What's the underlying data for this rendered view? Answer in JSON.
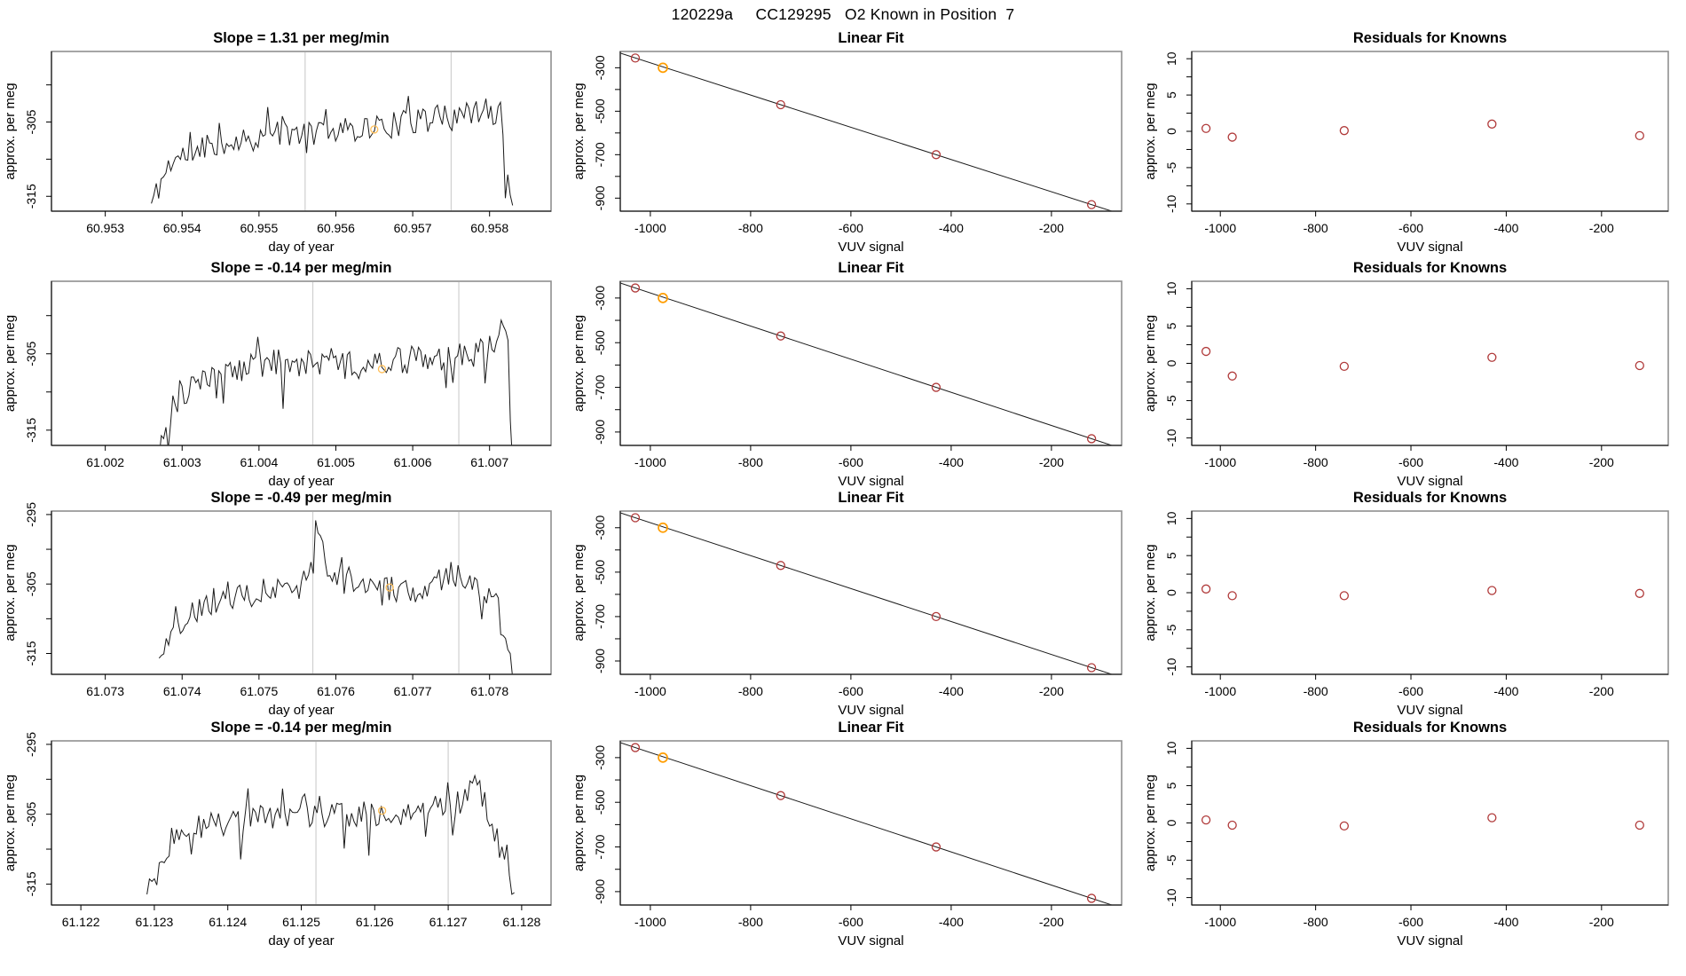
{
  "title": "120229a     CC129295   O2 Known in Position  7",
  "colors": {
    "point": "#b03a3a",
    "orange": "#ff9d00",
    "orange_light": "#ffbe57",
    "vline": "#cfcfcf",
    "box": "#8f8f8f",
    "axis": "#000000",
    "series": "#1a1a1a",
    "fit_line": "#1a1a1a"
  },
  "chart_data": {
    "type": "line",
    "grid": "4 rows x 3 columns",
    "labels": {
      "ts_xlabel": "day of year",
      "vuv_xlabel": "VUV signal",
      "ylabel": "approx. per meg",
      "linear_fit_title": "Linear Fit",
      "residuals_title": "Residuals for Knowns"
    },
    "knowns": {
      "vuv_x": [
        -1030,
        -975,
        -740,
        -430,
        -120
      ],
      "fit_y": [
        -255,
        -300,
        -470,
        -700,
        -930
      ],
      "orange_index": 1,
      "fit_axes": {
        "xlim": [
          -1060,
          -60
        ],
        "ylim": [
          -960,
          -225
        ],
        "xticks": [
          "-1000",
          "-800",
          "-600",
          "-400",
          "-200"
        ],
        "yticks_major": [
          -300,
          -500,
          -700,
          -900
        ],
        "yticks_minor": [
          -400,
          -600,
          -800
        ]
      },
      "resid_axes": {
        "xlim": [
          -1060,
          -60
        ],
        "ylim": [
          -11,
          11
        ],
        "xticks": [
          "-1000",
          "-800",
          "-600",
          "-400",
          "-200"
        ],
        "yticks_major": [
          10,
          5,
          0,
          -5,
          -10
        ],
        "yticks_minor": [
          7.5,
          2.5,
          -2.5,
          -7.5
        ]
      }
    },
    "rows": [
      {
        "slope_title": "Slope =  1.31  per meg/min",
        "timeseries": {
          "xlim": [
            60.9523,
            60.9588
          ],
          "ylim": [
            -317,
            -295.5
          ],
          "xticks": [
            "60.953",
            "60.954",
            "60.955",
            "60.956",
            "60.957",
            "60.958"
          ],
          "yticks": [
            -315,
            -310,
            -305,
            -300,
            -295
          ],
          "yticks_labeled": [
            -315,
            -305
          ],
          "data_x": [
            60.9536,
            60.9583
          ],
          "envelope": [
            [
              0,
              -316
            ],
            [
              0.05,
              -310.5
            ],
            [
              0.15,
              -308
            ],
            [
              0.3,
              -307
            ],
            [
              0.5,
              -306
            ],
            [
              0.65,
              -305.5
            ],
            [
              0.8,
              -304.5
            ],
            [
              0.93,
              -303.5
            ],
            [
              0.97,
              -304
            ],
            [
              1,
              -317
            ]
          ],
          "noise": 1.8,
          "n": 150,
          "seed": 11,
          "vlines": [
            60.9556,
            60.9575
          ],
          "marker": {
            "x": 60.9565,
            "y": -306
          }
        },
        "residual_y": [
          0.4,
          -0.8,
          0.1,
          1.0,
          -0.6
        ]
      },
      {
        "slope_title": "Slope =  -0.14  per meg/min",
        "timeseries": {
          "xlim": [
            61.0013,
            61.0078
          ],
          "ylim": [
            -317,
            -295.5
          ],
          "xticks": [
            "61.002",
            "61.003",
            "61.004",
            "61.005",
            "61.006",
            "61.007"
          ],
          "yticks": [
            -315,
            -310,
            -305,
            -300,
            -295
          ],
          "yticks_labeled": [
            -315,
            -305
          ],
          "data_x": [
            61.0027,
            61.0073
          ],
          "envelope": [
            [
              0,
              -317
            ],
            [
              0.05,
              -311
            ],
            [
              0.18,
              -307
            ],
            [
              0.35,
              -306
            ],
            [
              0.55,
              -306.5
            ],
            [
              0.75,
              -305.5
            ],
            [
              0.9,
              -305
            ],
            [
              0.95,
              -303
            ],
            [
              0.98,
              -300
            ],
            [
              1,
              -318
            ]
          ],
          "noise": 1.9,
          "n": 155,
          "seed": 23,
          "vlines": [
            61.0047,
            61.0066
          ],
          "marker": {
            "x": 61.0056,
            "y": -307
          }
        },
        "residual_y": [
          1.6,
          -1.7,
          -0.4,
          0.8,
          -0.3
        ]
      },
      {
        "slope_title": "Slope =  -0.49  per meg/min",
        "timeseries": {
          "xlim": [
            61.0723,
            61.0788
          ],
          "ylim": [
            -318,
            -294.5
          ],
          "xticks": [
            "61.073",
            "61.074",
            "61.075",
            "61.076",
            "61.077",
            "61.078"
          ],
          "yticks": [
            -315,
            -310,
            -305,
            -300,
            -295
          ],
          "yticks_labeled": [
            -315,
            -305,
            -295
          ],
          "data_x": [
            61.0737,
            61.0783
          ],
          "envelope": [
            [
              0,
              -317
            ],
            [
              0.05,
              -311
            ],
            [
              0.15,
              -307.5
            ],
            [
              0.3,
              -306
            ],
            [
              0.42,
              -303.5
            ],
            [
              0.45,
              -297.5
            ],
            [
              0.48,
              -304
            ],
            [
              0.6,
              -305.5
            ],
            [
              0.72,
              -306
            ],
            [
              0.82,
              -303.5
            ],
            [
              0.9,
              -305
            ],
            [
              0.96,
              -307
            ],
            [
              1,
              -318
            ]
          ],
          "noise": 1.9,
          "n": 150,
          "seed": 37,
          "vlines": [
            61.0757,
            61.0776
          ],
          "marker": {
            "x": 61.0767,
            "y": -305.5
          }
        },
        "residual_y": [
          0.5,
          -0.4,
          -0.4,
          0.3,
          -0.1
        ]
      },
      {
        "slope_title": "Slope =  -0.14  per meg/min",
        "timeseries": {
          "xlim": [
            61.1216,
            61.1284
          ],
          "ylim": [
            -318,
            -294.5
          ],
          "xticks": [
            "61.122",
            "61.123",
            "61.124",
            "61.125",
            "61.126",
            "61.127",
            "61.128"
          ],
          "yticks": [
            -315,
            -310,
            -305,
            -300,
            -295
          ],
          "yticks_labeled": [
            -315,
            -305,
            -295
          ],
          "data_x": [
            61.1229,
            61.1279
          ],
          "envelope": [
            [
              0,
              -316
            ],
            [
              0.04,
              -312
            ],
            [
              0.1,
              -307
            ],
            [
              0.3,
              -305.5
            ],
            [
              0.5,
              -305
            ],
            [
              0.7,
              -305
            ],
            [
              0.85,
              -303.5
            ],
            [
              0.9,
              -300.5
            ],
            [
              0.94,
              -306
            ],
            [
              1,
              -318
            ]
          ],
          "noise": 1.9,
          "n": 150,
          "seed": 49,
          "vlines": [
            61.1252,
            61.127
          ],
          "marker": {
            "x": 61.1261,
            "y": -304.5
          }
        },
        "residual_y": [
          0.4,
          -0.3,
          -0.4,
          0.7,
          -0.3
        ]
      }
    ]
  }
}
